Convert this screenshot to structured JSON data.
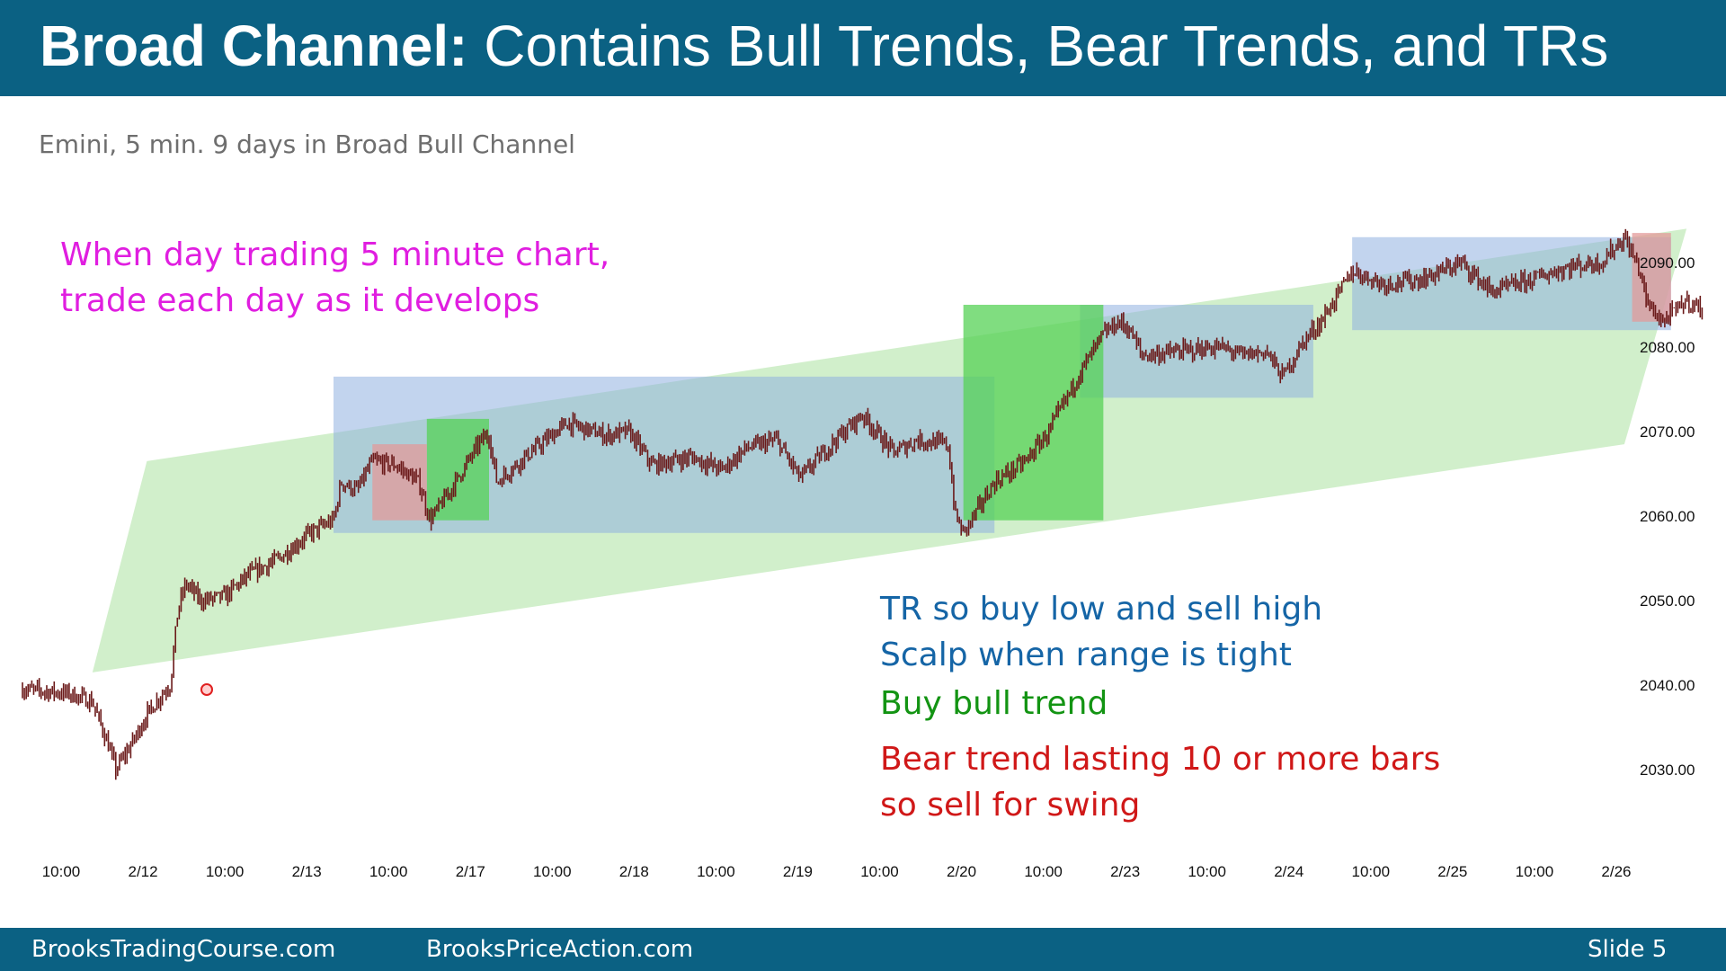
{
  "header": {
    "title_bold": "Broad Channel:",
    "title_rest": " Contains Bull Trends, Bear Trends, and TRs"
  },
  "subtitle": "Emini, 5 min. 9 days in Broad Bull Channel",
  "notes": {
    "magenta": [
      "When day trading 5 minute chart,",
      "trade each day as it develops"
    ],
    "blue": [
      "TR so buy low and sell high",
      "Scalp when range is tight"
    ],
    "green": "Buy bull trend",
    "red": [
      "Bear trend lasting 10 or more bars",
      "so sell for swing"
    ]
  },
  "footer": {
    "site1": "BrooksTradingCourse.com",
    "site2": "BrooksPriceAction.com",
    "slide": "Slide  5"
  },
  "colors": {
    "header_bg": "#0b6183",
    "candle": "#6b1a1a",
    "channel": "#c9ecc2",
    "range_box": "#8fb0e0",
    "bull_box": "#55d155",
    "bear_box": "#e39a9a"
  },
  "chart_data": {
    "type": "candlestick",
    "instrument": "Emini",
    "timeframe": "5 min",
    "ylim": [
      2025,
      2095
    ],
    "y_ticks": [
      "2090.00",
      "2080.00",
      "2070.00",
      "2060.00",
      "2050.00",
      "2040.00",
      "2030.00"
    ],
    "x_ticks": [
      "10:00",
      "2/12",
      "10:00",
      "2/13",
      "10:00",
      "2/17",
      "10:00",
      "2/18",
      "10:00",
      "2/19",
      "10:00",
      "2/20",
      "10:00",
      "2/23",
      "10:00",
      "2/24",
      "10:00",
      "2/25",
      "10:00",
      "2/26"
    ],
    "price_path": [
      [
        0,
        2039.5
      ],
      [
        0.3,
        2039.0
      ],
      [
        0.45,
        2038.0
      ],
      [
        0.55,
        2033.0
      ],
      [
        0.6,
        2030.0
      ],
      [
        0.7,
        2033.0
      ],
      [
        0.8,
        2036.5
      ],
      [
        0.9,
        2039.0
      ],
      [
        0.95,
        2040.0
      ],
      [
        1.0,
        2049.0
      ],
      [
        1.05,
        2052.0
      ],
      [
        1.15,
        2050.0
      ],
      [
        1.3,
        2050.5
      ],
      [
        1.45,
        2053.0
      ],
      [
        1.65,
        2055.0
      ],
      [
        1.85,
        2058.0
      ],
      [
        2.0,
        2059.5
      ],
      [
        2.05,
        2064.0
      ],
      [
        2.15,
        2063.0
      ],
      [
        2.25,
        2066.5
      ],
      [
        2.4,
        2066.0
      ],
      [
        2.55,
        2064.0
      ],
      [
        2.62,
        2059.5
      ],
      [
        2.75,
        2063.0
      ],
      [
        2.95,
        2069.0
      ],
      [
        3.0,
        2069.5
      ],
      [
        3.05,
        2064.0
      ],
      [
        3.2,
        2066.5
      ],
      [
        3.5,
        2071.0
      ],
      [
        3.75,
        2069.5
      ],
      [
        3.9,
        2070.0
      ],
      [
        4.05,
        2066.0
      ],
      [
        4.3,
        2067.0
      ],
      [
        4.5,
        2065.5
      ],
      [
        4.65,
        2068.0
      ],
      [
        4.85,
        2069.0
      ],
      [
        5.0,
        2064.5
      ],
      [
        5.2,
        2068.5
      ],
      [
        5.4,
        2072.0
      ],
      [
        5.6,
        2067.5
      ],
      [
        5.75,
        2069.0
      ],
      [
        5.95,
        2068.5
      ],
      [
        6.0,
        2060.0
      ],
      [
        6.05,
        2058.0
      ],
      [
        6.25,
        2064.0
      ],
      [
        6.45,
        2066.5
      ],
      [
        6.6,
        2070.0
      ],
      [
        6.8,
        2077.0
      ],
      [
        6.95,
        2081.5
      ],
      [
        7.05,
        2083.0
      ],
      [
        7.12,
        2082.0
      ],
      [
        7.2,
        2079.0
      ],
      [
        7.45,
        2079.5
      ],
      [
        7.7,
        2080.0
      ],
      [
        7.85,
        2079.0
      ],
      [
        8.0,
        2079.5
      ],
      [
        8.1,
        2076.5
      ],
      [
        8.25,
        2081.0
      ],
      [
        8.35,
        2083.0
      ],
      [
        8.45,
        2086.0
      ],
      [
        8.55,
        2089.0
      ],
      [
        8.75,
        2087.5
      ],
      [
        9.0,
        2088.0
      ],
      [
        9.25,
        2090.0
      ],
      [
        9.45,
        2086.5
      ],
      [
        9.7,
        2088.0
      ],
      [
        9.95,
        2089.5
      ],
      [
        10.15,
        2090.0
      ],
      [
        10.3,
        2093.0
      ],
      [
        10.4,
        2089.0
      ],
      [
        10.45,
        2085.0
      ],
      [
        10.55,
        2083.0
      ],
      [
        10.7,
        2085.5
      ],
      [
        10.8,
        2084.5
      ]
    ],
    "channel": {
      "upper_start": 2066.5,
      "upper_end": 2093.5,
      "lower_start": 2041.5,
      "lower_end": 2068.5
    },
    "trading_ranges": [
      {
        "x": [
          2.0,
          6.25
        ],
        "y": [
          2058.0,
          2076.5
        ]
      },
      {
        "x": [
          6.8,
          8.3
        ],
        "y": [
          2074.0,
          2085.0
        ]
      },
      {
        "x": [
          8.55,
          10.6
        ],
        "y": [
          2082.0,
          2093.0
        ]
      }
    ],
    "bull_trends": [
      {
        "x": [
          2.6,
          3.0
        ],
        "y": [
          2059.5,
          2071.5
        ]
      },
      {
        "x": [
          6.05,
          6.95
        ],
        "y": [
          2059.5,
          2085.0
        ]
      }
    ],
    "bear_trends": [
      {
        "x": [
          2.25,
          2.6
        ],
        "y": [
          2059.5,
          2068.5
        ]
      },
      {
        "x": [
          10.35,
          10.6
        ],
        "y": [
          2083.0,
          2093.5
        ]
      }
    ]
  }
}
